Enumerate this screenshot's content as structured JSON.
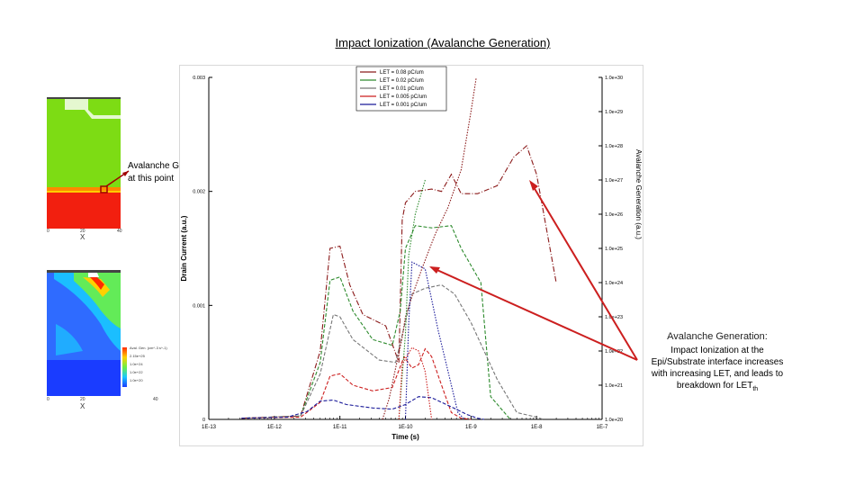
{
  "title": "Impact Ionization (Avalanche Generation)",
  "left_sim": {
    "callout_lines": [
      "Avalanche Gen",
      "at this point"
    ],
    "top_x_ticks": [
      "0",
      "20",
      "40"
    ],
    "top_x_label": "X",
    "bottom_x_ticks": [
      "0",
      "20",
      "40"
    ],
    "bottom_x_label": "X",
    "colorbar_lines": [
      "Aval. Gen. (cm^-3 s^-1)",
      "2.15e+25",
      "1.0e+24",
      "1.0e+22",
      "1.0e+20",
      "1.0e+18"
    ],
    "colors": {
      "green": "#7ddc14",
      "red": "#f21f0f",
      "orange": "#ff8a00",
      "blue": "#2f6bff"
    }
  },
  "right_callout": {
    "title": "Avalanche Generation:",
    "lines": [
      "Impact Ionization at the",
      "Epi/Substrate interface increases",
      "with increasing LET, and leads to",
      "breakdown for LET"
    ],
    "subscript": "th"
  },
  "chart_data": {
    "type": "line",
    "ylabel": "Drain Current (a.u.)",
    "y2label": "Avalanche Generation (a.u.)",
    "xlabel": "Time (s)",
    "x_log": true,
    "xlim": [
      -13,
      -7
    ],
    "ylim": [
      0,
      0.003
    ],
    "y2_log": true,
    "y2lim": [
      20,
      30
    ],
    "x_ticks": [
      "1E-13",
      "1E-12",
      "1E-11",
      "1E-10",
      "1E-9",
      "1E-8",
      "1E-7"
    ],
    "y_ticks": [
      "0",
      "0.001",
      "0.002",
      "0.003"
    ],
    "y2_ticks": [
      "1.0e+20",
      "1.0e+21",
      "1.0e+22",
      "1.0e+23",
      "1.0e+24",
      "1.0e+25",
      "1.0e+26",
      "1.0e+27",
      "1.0e+28",
      "1.0e+29",
      "1.0e+30"
    ],
    "legend_position": "top-center",
    "series": [
      {
        "name": "LET = 0.08 pC/um",
        "color": "#8b1a1a",
        "axis": "y",
        "x": [
          -12.5,
          -11.6,
          -11.3,
          -11.15,
          -11.0,
          -10.85,
          -10.65,
          -10.3,
          -10.1,
          -10.05,
          -10.0,
          -9.85,
          -9.6,
          -9.45,
          -9.3,
          -9.15,
          -8.9,
          -8.6,
          -8.35,
          -8.15,
          -8.0,
          -7.7
        ],
        "y": [
          1e-05,
          3e-05,
          0.0006,
          0.0015,
          0.00152,
          0.00118,
          0.00092,
          0.00082,
          0.0005,
          0.00175,
          0.0019,
          0.002,
          0.00202,
          0.002,
          0.00215,
          0.00198,
          0.00198,
          0.00205,
          0.0023,
          0.0024,
          0.00215,
          0.0012
        ]
      },
      {
        "name": "LET = 0.02 pC/um",
        "color": "#2e8b2e",
        "axis": "y",
        "x": [
          -12.5,
          -11.6,
          -11.3,
          -11.15,
          -11.0,
          -10.8,
          -10.5,
          -10.2,
          -10.08,
          -10.0,
          -9.85,
          -9.6,
          -9.3,
          -9.15,
          -8.85,
          -8.7,
          -8.4
        ],
        "y": [
          1e-05,
          3e-05,
          0.0005,
          0.00122,
          0.00125,
          0.00095,
          0.0007,
          0.00065,
          0.00095,
          0.0015,
          0.0017,
          0.00168,
          0.0017,
          0.0015,
          0.0012,
          0.0002,
          0.0
        ],
        "dashed": true
      },
      {
        "name": "LET = 0.01 pC/um",
        "color": "#777777",
        "axis": "y",
        "x": [
          -12.5,
          -11.6,
          -11.3,
          -11.1,
          -11.0,
          -10.8,
          -10.4,
          -10.15,
          -9.9,
          -9.7,
          -9.45,
          -9.25,
          -9.0,
          -8.6,
          -8.3,
          -8.0,
          -7.9
        ],
        "y": [
          1e-05,
          3e-05,
          0.0004,
          0.00092,
          0.0009,
          0.0007,
          0.00052,
          0.0005,
          0.0011,
          0.00115,
          0.00118,
          0.0011,
          0.00085,
          0.00035,
          6e-05,
          2e-05,
          0.0
        ],
        "dashed": true
      },
      {
        "name": "LET = 0.005 pC/um",
        "color": "#cc1f1f",
        "axis": "y",
        "x": [
          -12.5,
          -11.6,
          -11.3,
          -11.15,
          -11.0,
          -10.8,
          -10.5,
          -10.2,
          -10.02,
          -9.9,
          -9.8,
          -9.7,
          -9.6,
          -9.45,
          -9.3,
          -9.15,
          -9.0
        ],
        "y": [
          1e-05,
          2e-05,
          0.00015,
          0.00038,
          0.0004,
          0.0003,
          0.00025,
          0.00028,
          0.00055,
          0.00045,
          0.00048,
          0.00062,
          0.00055,
          0.0003,
          6e-05,
          1e-05,
          0.0
        ],
        "dashed": true
      },
      {
        "name": "LET = 0.001 pC/um",
        "color": "#1a1a99",
        "axis": "y",
        "x": [
          -12.5,
          -11.8,
          -11.5,
          -11.3,
          -11.1,
          -10.9,
          -10.5,
          -10.2,
          -10.0,
          -9.8,
          -9.6,
          -9.3,
          -9.05,
          -8.9,
          -8.8
        ],
        "y": [
          1e-05,
          2e-05,
          7e-05,
          0.00016,
          0.00017,
          0.00013,
          0.0001,
          9e-05,
          0.00013,
          0.0002,
          0.00019,
          0.00011,
          4e-05,
          1e-05,
          0.0
        ],
        "dashed": true
      },
      {
        "name": "",
        "color": "#8b1a1a",
        "axis": "y2",
        "x": [
          -10.35,
          -10.25,
          -10.15,
          -10.05,
          -10.0,
          -9.9,
          -9.75,
          -9.55,
          -9.35,
          -9.15,
          -9.0,
          -8.92
        ],
        "y": [
          20.0,
          20.6,
          21.5,
          22.4,
          23.0,
          23.6,
          24.4,
          25.4,
          26.2,
          27.3,
          29.0,
          30.0
        ]
      },
      {
        "name": "",
        "color": "#2e8b2e",
        "axis": "y2",
        "x": [
          -10.1,
          -10.0,
          -9.95,
          -9.85,
          -9.7
        ],
        "y": [
          20.0,
          22.5,
          24.8,
          26.0,
          27.0
        ]
      },
      {
        "name": "",
        "color": "#cc1f1f",
        "axis": "y2",
        "x": [
          -10.1,
          -10.05,
          -9.9,
          -9.8,
          -9.7,
          -9.6
        ],
        "y": [
          20.0,
          21.6,
          22.1,
          22.0,
          21.4,
          20.0
        ]
      },
      {
        "name": "",
        "color": "#1a1a99",
        "axis": "y2",
        "x": [
          -10.0,
          -9.95,
          -9.9,
          -9.7,
          -9.5,
          -9.3,
          -9.2,
          -9.1
        ],
        "y": [
          20.0,
          22.8,
          24.6,
          24.4,
          22.6,
          21.0,
          20.2,
          20.0
        ]
      }
    ]
  }
}
